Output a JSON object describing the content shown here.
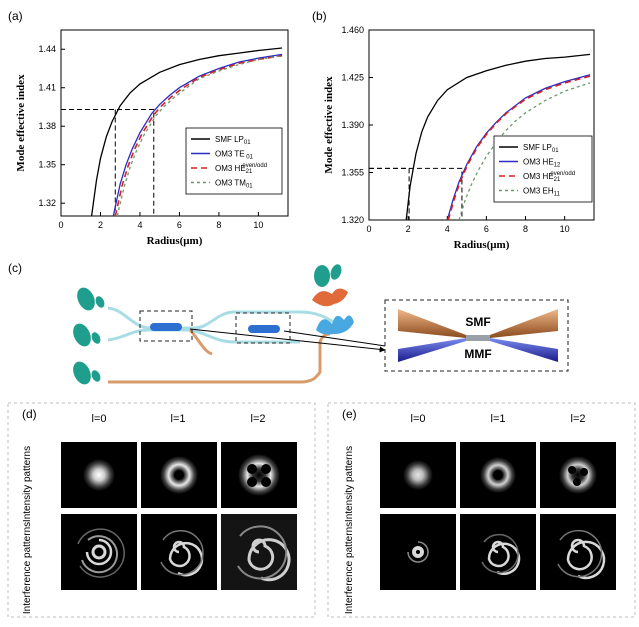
{
  "panels": {
    "a": {
      "tag": "(a)"
    },
    "b": {
      "tag": "(b)"
    },
    "c": {
      "tag": "(c)"
    },
    "d": {
      "tag": "(d)"
    },
    "e": {
      "tag": "(e)"
    }
  },
  "chart_data": [
    {
      "id": "a",
      "type": "line",
      "xlabel": "Radius(μm)",
      "ylabel": "Mode effective index",
      "xlim": [
        0,
        11.5
      ],
      "ylim": [
        1.31,
        1.455
      ],
      "xticks": [
        "0",
        "2",
        "4",
        "6",
        "8",
        "10"
      ],
      "xtick_values": [
        0,
        2,
        4,
        6,
        8,
        10
      ],
      "yticks": [
        "1.32",
        "1.35",
        "1.38",
        "1.41",
        "1.44"
      ],
      "ytick_values": [
        1.32,
        1.35,
        1.38,
        1.41,
        1.44
      ],
      "series": [
        {
          "name": "SMF LP01",
          "label": "SMF",
          "mode": "LP",
          "sub": "01",
          "sup": "",
          "color": "#000000",
          "dash": "solid",
          "x": [
            1.55,
            1.8,
            2.0,
            2.3,
            2.6,
            3.0,
            3.5,
            4.0,
            5.0,
            6.0,
            7.0,
            8.0,
            9.0,
            10.0,
            11.2
          ],
          "y": [
            1.31,
            1.338,
            1.355,
            1.372,
            1.384,
            1.396,
            1.406,
            1.413,
            1.422,
            1.428,
            1.432,
            1.435,
            1.437,
            1.439,
            1.441
          ]
        },
        {
          "name": "OM3 TE01",
          "label": "OM3",
          "mode": "TE",
          "sub": " 01",
          "sup": "",
          "color": "#2b2bc8",
          "dash": "solid",
          "x": [
            2.65,
            3.0,
            3.3,
            3.6,
            4.0,
            4.6,
            5.0,
            5.5,
            6.0,
            7.0,
            8.0,
            9.0,
            10.0,
            11.2
          ],
          "y": [
            1.31,
            1.335,
            1.35,
            1.362,
            1.375,
            1.39,
            1.397,
            1.404,
            1.41,
            1.419,
            1.425,
            1.43,
            1.433,
            1.436
          ]
        },
        {
          "name": "OM3 HE21 even/odd",
          "label": "OM3",
          "mode": "HE",
          "sub": "21",
          "sup": "even/odd",
          "color": "#d42020",
          "dash": "6,4",
          "x": [
            2.75,
            3.1,
            3.4,
            3.7,
            4.1,
            4.7,
            5.1,
            5.6,
            6.1,
            7.0,
            8.0,
            9.0,
            10.0,
            11.2
          ],
          "y": [
            1.31,
            1.334,
            1.349,
            1.361,
            1.374,
            1.389,
            1.396,
            1.403,
            1.409,
            1.418,
            1.424,
            1.429,
            1.432,
            1.435
          ]
        },
        {
          "name": "OM3 TM01",
          "label": "OM3",
          "mode": "TM",
          "sub": "01",
          "sup": "",
          "color": "#6a9a6a",
          "dash": "3,3",
          "x": [
            2.85,
            3.2,
            3.5,
            3.8,
            4.2,
            4.8,
            5.2,
            5.7,
            6.2,
            7.0,
            8.0,
            9.0,
            10.0,
            11.2
          ],
          "y": [
            1.31,
            1.333,
            1.348,
            1.36,
            1.373,
            1.388,
            1.395,
            1.402,
            1.408,
            1.417,
            1.423,
            1.428,
            1.432,
            1.435
          ]
        }
      ],
      "guides": [
        [
          0,
          1.393
        ],
        [
          2.75,
          1.393
        ],
        [
          2.75,
          1.31
        ],
        [
          4.7,
          1.393
        ],
        [
          4.7,
          1.31
        ]
      ]
    },
    {
      "id": "b",
      "type": "line",
      "xlabel": "Radius(μm)",
      "ylabel": "Mode effective index",
      "xlim": [
        0,
        11.5
      ],
      "ylim": [
        1.32,
        1.46
      ],
      "xticks": [
        "0",
        "2",
        "4",
        "6",
        "8",
        "10"
      ],
      "xtick_values": [
        0,
        2,
        4,
        6,
        8,
        10
      ],
      "yticks": [
        "1.320",
        "1.355",
        "1.390",
        "1.425",
        "1.460"
      ],
      "ytick_values": [
        1.32,
        1.355,
        1.39,
        1.425,
        1.46
      ],
      "series": [
        {
          "name": "SMF LP01",
          "label": "SMF",
          "mode": "LP",
          "sub": "01",
          "sup": "",
          "color": "#000000",
          "dash": "solid",
          "x": [
            1.9,
            2.1,
            2.4,
            2.7,
            3.0,
            3.5,
            4.0,
            5.0,
            6.0,
            7.0,
            8.0,
            9.0,
            10.0,
            11.3
          ],
          "y": [
            1.32,
            1.345,
            1.369,
            1.385,
            1.396,
            1.408,
            1.416,
            1.425,
            1.43,
            1.434,
            1.437,
            1.439,
            1.44,
            1.442
          ]
        },
        {
          "name": "OM3 HE12",
          "label": "OM3",
          "mode": "HE",
          "sub": "12",
          "sup": "",
          "color": "#2b2bc8",
          "dash": "solid",
          "x": [
            4.0,
            4.3,
            4.6,
            5.0,
            5.5,
            6.0,
            6.5,
            7.0,
            8.0,
            9.0,
            10.0,
            11.3
          ],
          "y": [
            1.32,
            1.335,
            1.348,
            1.361,
            1.374,
            1.384,
            1.392,
            1.399,
            1.41,
            1.417,
            1.422,
            1.427
          ]
        },
        {
          "name": "OM3 HE21 even/odd",
          "label": "OM3",
          "mode": "HE",
          "sub": "21",
          "sup": "even/odd",
          "color": "#d42020",
          "dash": "6,4",
          "x": [
            4.05,
            4.35,
            4.65,
            5.05,
            5.55,
            6.05,
            6.55,
            7.05,
            8.0,
            9.0,
            10.0,
            11.3
          ],
          "y": [
            1.32,
            1.335,
            1.348,
            1.361,
            1.374,
            1.384,
            1.392,
            1.399,
            1.409,
            1.416,
            1.421,
            1.426
          ]
        },
        {
          "name": "OM3 EH11",
          "label": "OM3",
          "mode": "EH",
          "sub": "11",
          "sup": "",
          "color": "#6a9a6a",
          "dash": "3,3",
          "x": [
            4.6,
            4.9,
            5.2,
            5.6,
            6.0,
            6.5,
            7.0,
            7.5,
            8.0,
            9.0,
            10.0,
            11.3
          ],
          "y": [
            1.32,
            1.334,
            1.345,
            1.357,
            1.367,
            1.377,
            1.386,
            1.393,
            1.399,
            1.408,
            1.415,
            1.421
          ]
        }
      ],
      "guides": [
        [
          0,
          1.358
        ],
        [
          2.05,
          1.358
        ],
        [
          2.05,
          1.32
        ],
        [
          4.75,
          1.358
        ],
        [
          4.75,
          1.32
        ]
      ]
    }
  ],
  "schematic": {
    "smf_label": "SMF",
    "mmf_label": "MMF"
  },
  "patterns": {
    "columns": [
      "l=0",
      "l=1",
      "l=2"
    ],
    "row_intensity": "Intensity patterns",
    "row_interference": "Interference patterns"
  },
  "colors": {
    "teal": "#1f9e8e",
    "copper": "#d99b6c",
    "lightblue": "#a8dde3",
    "blue": "#2d6fd0"
  }
}
